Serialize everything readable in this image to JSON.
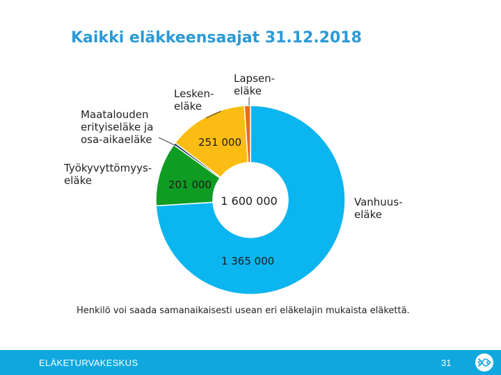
{
  "chart_data": {
    "type": "pie",
    "title": "Kaikki eläkkeensaajat 31.12.2018",
    "center_label": "1 600 000",
    "categories": [
      "Vanhuuseläke",
      "Työkyvyttömyyseläke",
      "Maatalouden erityiseläke ja osa-aikaeläke",
      "Leskeneläke",
      "Lapseneläke"
    ],
    "values": [
      1365000,
      201000,
      8000,
      251000,
      19000
    ],
    "slices": [
      {
        "key": "vanhuus",
        "name_lines": [
          "Vanhuus-",
          "eläke"
        ],
        "value": 1365000,
        "value_label": "1 365 000",
        "color": "#0bb5ef"
      },
      {
        "key": "tyokyvyttomyys",
        "name_lines": [
          "Työkyvyttömyys-",
          "eläke"
        ],
        "value": 201000,
        "value_label": "201 000",
        "color": "#0f9c23"
      },
      {
        "key": "maatalous",
        "name_lines": [
          "Maatalouden",
          "erityiseläke ja",
          "osa-aikaeläke"
        ],
        "value": 8000,
        "value_label": "",
        "color": "#1d3a5c"
      },
      {
        "key": "lesken",
        "name_lines": [
          "Lesken-",
          "eläke"
        ],
        "value": 251000,
        "value_label": "251 000",
        "color": "#fbbd13"
      },
      {
        "key": "lapsen",
        "name_lines": [
          "Lapsen-",
          "eläke"
        ],
        "value": 19000,
        "value_label": "",
        "color": "#e86a1e"
      }
    ],
    "annotation": "Henkilö voi saada samanaikaisesti usean eri eläkelajin mukaista eläkettä."
  },
  "footer": {
    "organization": "ELÄKETURVAKESKUS",
    "page_number": "31",
    "color": "#0fa8de"
  }
}
